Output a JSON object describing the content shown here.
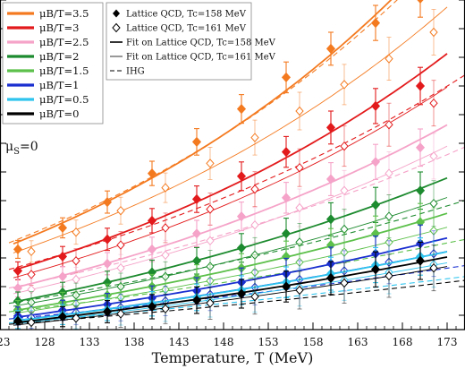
{
  "chart_data": {
    "type": "line",
    "xlabel": "Temperature, T (MeV)",
    "ylabel": "",
    "xlim": [
      123,
      175
    ],
    "ylim": [
      0.12,
      0.58
    ],
    "x_ticks": [
      123,
      128,
      133,
      138,
      143,
      148,
      153,
      158,
      163,
      168,
      173
    ],
    "annotation": "μS=0",
    "legend_mu": [
      {
        "label": "μB/T=3.5",
        "color": "#f47a20"
      },
      {
        "label": "μB/T=3",
        "color": "#e31a1c"
      },
      {
        "label": "μB/T=2.5",
        "color": "#f5a3c8"
      },
      {
        "label": "μB/T=2",
        "color": "#1c8a2e"
      },
      {
        "label": "μB/T=1.5",
        "color": "#5cc04a"
      },
      {
        "label": "μB/T=1",
        "color": "#1a2fd0"
      },
      {
        "label": "μB/T=0.5",
        "color": "#2ec4ee"
      },
      {
        "label": "μB/T=0",
        "color": "#000000"
      }
    ],
    "legend_style": [
      {
        "label": "Lattice QCD, Tc=158 MeV",
        "style": "filled-diamond"
      },
      {
        "label": "Lattice QCD, Tc=161 MeV",
        "style": "open-diamond"
      },
      {
        "label": "Fit on Lattice QCD, Tc=158 MeV",
        "style": "thick-line"
      },
      {
        "label": "Fit on Lattice QCD, Tc=161 MeV",
        "style": "thin-line"
      },
      {
        "label": "IHG",
        "style": "dashed-line"
      }
    ],
    "x_filled": [
      125,
      130,
      135,
      140,
      145,
      150,
      155,
      160,
      165,
      170
    ],
    "x_open": [
      126.5,
      131.5,
      136.5,
      141.5,
      146.5,
      151.5,
      156.5,
      161.5,
      166.5,
      171.5
    ],
    "series": [
      {
        "name": "μB/T=3.5",
        "color": "#f47a20",
        "filled": [
          0.232,
          0.262,
          0.298,
          0.338,
          0.382,
          0.428,
          0.472,
          0.512,
          0.548,
          0.582
        ],
        "open": [
          0.229,
          0.256,
          0.286,
          0.318,
          0.352,
          0.388,
          0.425,
          0.462,
          0.498,
          0.535
        ],
        "ihg": [
          0.252,
          0.285,
          0.328,
          0.382,
          0.448,
          0.528,
          0.62
        ]
      },
      {
        "name": "μB/T=3",
        "color": "#e31a1c",
        "filled": [
          0.202,
          0.222,
          0.246,
          0.272,
          0.302,
          0.334,
          0.368,
          0.402,
          0.432,
          0.46
        ],
        "open": [
          0.197,
          0.216,
          0.238,
          0.262,
          0.288,
          0.316,
          0.346,
          0.376,
          0.406,
          0.436
        ],
        "ihg": [
          0.214,
          0.236,
          0.262,
          0.294,
          0.334,
          0.382,
          0.44,
          0.51
        ]
      },
      {
        "name": "μB/T=2.5",
        "color": "#f5a3c8",
        "filled": [
          0.178,
          0.194,
          0.212,
          0.232,
          0.254,
          0.278,
          0.304,
          0.33,
          0.354,
          0.374
        ],
        "open": [
          0.176,
          0.19,
          0.206,
          0.224,
          0.244,
          0.266,
          0.29,
          0.314,
          0.338,
          0.362
        ],
        "ihg": [
          0.186,
          0.203,
          0.222,
          0.246,
          0.274,
          0.308,
          0.348,
          0.396,
          0.44
        ]
      },
      {
        "name": "μB/T=2",
        "color": "#1c8a2e",
        "filled": [
          0.16,
          0.172,
          0.186,
          0.2,
          0.216,
          0.234,
          0.254,
          0.274,
          0.294,
          0.314
        ],
        "open": [
          0.158,
          0.168,
          0.18,
          0.194,
          0.208,
          0.224,
          0.242,
          0.26,
          0.278,
          0.296
        ],
        "ihg": [
          0.163,
          0.176,
          0.19,
          0.208,
          0.228,
          0.252,
          0.28,
          0.312,
          0.35
        ]
      },
      {
        "name": "μB/T=1.5",
        "color": "#5cc04a",
        "filled": [
          0.148,
          0.158,
          0.168,
          0.18,
          0.192,
          0.206,
          0.222,
          0.238,
          0.254,
          0.27
        ],
        "open": [
          0.147,
          0.156,
          0.165,
          0.176,
          0.188,
          0.2,
          0.214,
          0.228,
          0.242,
          0.258
        ],
        "ihg": [
          0.15,
          0.159,
          0.17,
          0.182,
          0.196,
          0.212,
          0.232,
          0.254,
          0.28
        ]
      },
      {
        "name": "μB/T=1",
        "color": "#1a2fd0",
        "filled": [
          0.139,
          0.147,
          0.155,
          0.164,
          0.174,
          0.186,
          0.198,
          0.212,
          0.226,
          0.24
        ],
        "open": [
          0.137,
          0.144,
          0.151,
          0.16,
          0.169,
          0.179,
          0.19,
          0.202,
          0.214,
          0.226
        ],
        "ihg": [
          0.139,
          0.146,
          0.154,
          0.163,
          0.173,
          0.185,
          0.199,
          0.215,
          0.234
        ]
      },
      {
        "name": "μB/T=0.5",
        "color": "#2ec4ee",
        "filled": [
          0.134,
          0.141,
          0.148,
          0.156,
          0.165,
          0.175,
          0.186,
          0.198,
          0.21,
          0.222
        ],
        "open": [
          0.132,
          0.138,
          0.145,
          0.152,
          0.16,
          0.169,
          0.179,
          0.189,
          0.2,
          0.211
        ],
        "ihg": [
          0.133,
          0.139,
          0.146,
          0.154,
          0.163,
          0.173,
          0.185,
          0.199,
          0.215
        ]
      },
      {
        "name": "μB/T=0",
        "color": "#000000",
        "filled": [
          0.132,
          0.138,
          0.145,
          0.152,
          0.161,
          0.17,
          0.18,
          0.192,
          0.204,
          0.216
        ],
        "open": [
          0.13,
          0.136,
          0.142,
          0.149,
          0.157,
          0.166,
          0.175,
          0.185,
          0.195,
          0.206
        ],
        "ihg": [
          0.131,
          0.137,
          0.143,
          0.151,
          0.159,
          0.169,
          0.18,
          0.193,
          0.209
        ]
      }
    ]
  }
}
